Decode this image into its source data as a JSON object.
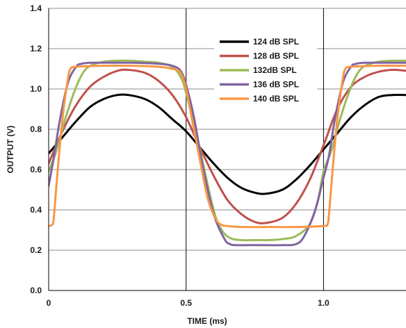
{
  "chart_data": {
    "type": "line",
    "title": "",
    "xlabel": "TIME (ms)",
    "ylabel": "OUTPUT (V)",
    "xlim": [
      0,
      1.3
    ],
    "ylim": [
      0.0,
      1.4
    ],
    "x_ticks": [
      0,
      0.5,
      1.0
    ],
    "x_tick_labels": [
      "0",
      "0.5",
      "1.0"
    ],
    "y_ticks": [
      0.0,
      0.2,
      0.4,
      0.6,
      0.8,
      1.0,
      1.2,
      1.4
    ],
    "y_tick_labels": [
      "0.0",
      "0.2",
      "0.4",
      "0.6",
      "0.8",
      "1.0",
      "1.2",
      "1.4"
    ],
    "grid": {
      "horizontal": true,
      "vertical": true
    },
    "legend_position": "top-right",
    "series": [
      {
        "name": "124 dB SPL",
        "color": "#000000",
        "x": [
          0,
          0.05,
          0.1,
          0.15,
          0.2,
          0.25,
          0.29,
          0.35,
          0.4,
          0.45,
          0.5,
          0.55,
          0.6,
          0.65,
          0.7,
          0.75,
          0.79,
          0.85,
          0.9,
          0.95,
          1.0,
          1.05,
          1.1,
          1.15,
          1.2,
          1.25,
          1.3
        ],
        "y": [
          0.68,
          0.76,
          0.84,
          0.91,
          0.95,
          0.97,
          0.97,
          0.95,
          0.91,
          0.85,
          0.79,
          0.71,
          0.63,
          0.56,
          0.51,
          0.485,
          0.48,
          0.5,
          0.55,
          0.62,
          0.7,
          0.78,
          0.86,
          0.92,
          0.96,
          0.97,
          0.97
        ]
      },
      {
        "name": "128 dB SPL",
        "color": "#c0504d",
        "x": [
          0,
          0.05,
          0.1,
          0.15,
          0.2,
          0.25,
          0.29,
          0.35,
          0.4,
          0.45,
          0.5,
          0.55,
          0.6,
          0.65,
          0.7,
          0.75,
          0.79,
          0.85,
          0.9,
          0.95,
          1.0,
          1.05,
          1.1,
          1.15,
          1.2,
          1.25,
          1.3
        ],
        "y": [
          0.63,
          0.79,
          0.92,
          1.01,
          1.06,
          1.09,
          1.095,
          1.08,
          1.04,
          0.97,
          0.86,
          0.71,
          0.57,
          0.45,
          0.38,
          0.34,
          0.335,
          0.36,
          0.43,
          0.55,
          0.72,
          0.9,
          1.01,
          1.06,
          1.085,
          1.095,
          1.09
        ]
      },
      {
        "name": "132dB SPL",
        "color": "#9bbb59",
        "x": [
          0,
          0.03,
          0.06,
          0.1,
          0.13,
          0.16,
          0.2,
          0.25,
          0.3,
          0.35,
          0.4,
          0.45,
          0.48,
          0.5,
          0.55,
          0.6,
          0.63,
          0.66,
          0.7,
          0.75,
          0.8,
          0.85,
          0.9,
          0.95,
          0.98,
          1.0,
          1.03,
          1.06,
          1.1,
          1.13,
          1.16,
          1.2,
          1.25,
          1.3
        ],
        "y": [
          0.59,
          0.7,
          0.85,
          1.01,
          1.09,
          1.12,
          1.135,
          1.14,
          1.14,
          1.135,
          1.13,
          1.11,
          1.06,
          0.98,
          0.7,
          0.4,
          0.3,
          0.26,
          0.25,
          0.25,
          0.25,
          0.255,
          0.27,
          0.33,
          0.45,
          0.59,
          0.7,
          0.85,
          1.01,
          1.09,
          1.12,
          1.135,
          1.14,
          1.14
        ]
      },
      {
        "name": "136 dB SPL",
        "color": "#8064a2",
        "x": [
          0,
          0.02,
          0.04,
          0.07,
          0.1,
          0.12,
          0.15,
          0.2,
          0.3,
          0.4,
          0.45,
          0.48,
          0.5,
          0.53,
          0.56,
          0.6,
          0.64,
          0.66,
          0.68,
          0.75,
          0.85,
          0.9,
          0.93,
          0.97,
          1.0,
          1.02,
          1.04,
          1.07,
          1.1,
          1.12,
          1.15,
          1.2,
          1.3
        ],
        "y": [
          0.52,
          0.67,
          0.84,
          1.03,
          1.11,
          1.125,
          1.13,
          1.13,
          1.13,
          1.125,
          1.115,
          1.09,
          1.02,
          0.85,
          0.62,
          0.38,
          0.255,
          0.23,
          0.225,
          0.225,
          0.225,
          0.23,
          0.27,
          0.4,
          0.56,
          0.67,
          0.84,
          1.03,
          1.11,
          1.125,
          1.13,
          1.13,
          1.13
        ]
      },
      {
        "name": "140 dB SPL",
        "color": "#f79646",
        "x": [
          0,
          0.015,
          0.02,
          0.03,
          0.05,
          0.07,
          0.08,
          0.1,
          0.2,
          0.3,
          0.4,
          0.45,
          0.48,
          0.5,
          0.52,
          0.55,
          0.58,
          0.61,
          0.63,
          0.65,
          0.7,
          0.8,
          0.9,
          1.0,
          1.015,
          1.02,
          1.03,
          1.05,
          1.07,
          1.08,
          1.1,
          1.2,
          1.3
        ],
        "y": [
          0.32,
          0.33,
          0.38,
          0.55,
          0.85,
          1.05,
          1.1,
          1.11,
          1.115,
          1.115,
          1.11,
          1.1,
          1.08,
          1.0,
          0.86,
          0.65,
          0.45,
          0.35,
          0.325,
          0.32,
          0.315,
          0.315,
          0.315,
          0.32,
          0.33,
          0.38,
          0.55,
          0.85,
          1.05,
          1.1,
          1.11,
          1.115,
          1.115
        ]
      }
    ]
  }
}
